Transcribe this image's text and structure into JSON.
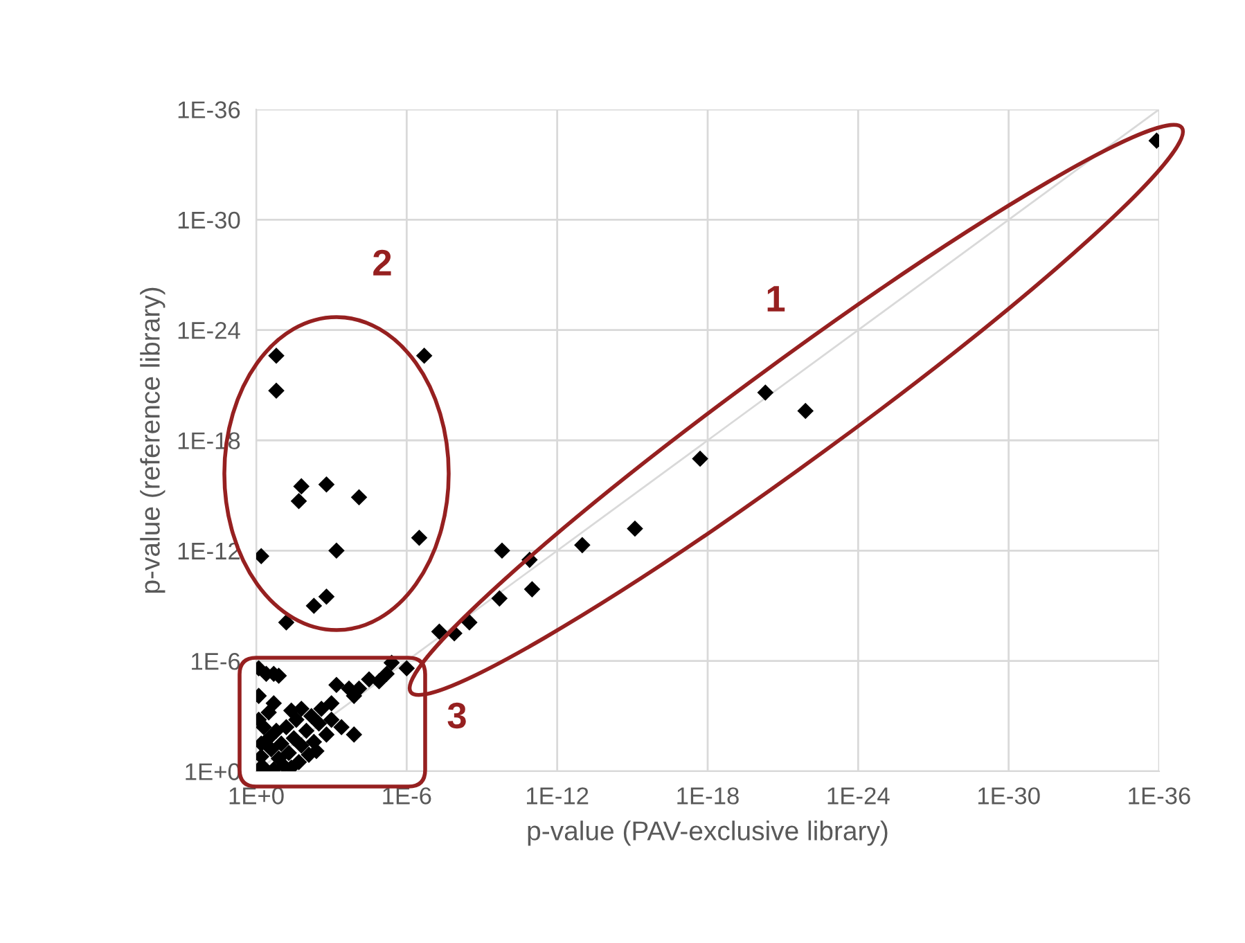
{
  "chart_data": {
    "type": "scatter",
    "xlabel": "p-value (PAV-exclusive library)",
    "ylabel": "p-value (reference library)",
    "log": "xy",
    "marker": "diamond",
    "grid": true,
    "xlim": [
      1,
      1e-36
    ],
    "ylim": [
      1,
      1e-36
    ],
    "xticks": [
      {
        "value": 1,
        "label": "1E+0"
      },
      {
        "value": 1e-06,
        "label": "1E-6"
      },
      {
        "value": 1e-12,
        "label": "1E-12"
      },
      {
        "value": 1e-18,
        "label": "1E-18"
      },
      {
        "value": 1e-24,
        "label": "1E-24"
      },
      {
        "value": 1e-30,
        "label": "1E-30"
      },
      {
        "value": 1e-36,
        "label": "1E-36"
      }
    ],
    "yticks": [
      {
        "value": 1,
        "label": "1E+0"
      },
      {
        "value": 1e-06,
        "label": "1E-6"
      },
      {
        "value": 1e-12,
        "label": "1E-12"
      },
      {
        "value": 1e-18,
        "label": "1E-18"
      },
      {
        "value": 1e-24,
        "label": "1E-24"
      },
      {
        "value": 1e-30,
        "label": "1E-30"
      },
      {
        "value": 1e-36,
        "label": "1E-36"
      }
    ],
    "annotations": [
      "1",
      "2",
      "3"
    ],
    "series": [
      {
        "type": "line",
        "marker": "none",
        "color": "#d9d9d9",
        "x": [
          1,
          1e-36
        ],
        "values": [
          1,
          1e-36
        ]
      },
      {
        "color": "#000000",
        "x": [
          0.158,
          0.158,
          2e-07,
          0.0158,
          0.02,
          0.00158,
          7.94e-05,
          0.631,
          0.000631,
          3.16e-07,
          0.00501,
          0.00158,
          0.0631
        ],
        "values": [
          2.51e-23,
          2e-21,
          2.51e-23,
          3.16e-16,
          2e-15,
          2.51e-16,
          1.26e-15,
          2e-12,
          1e-12,
          2e-13,
          1e-09,
          3.16e-10,
          7.94e-09
        ]
      },
      {
        "color": "#000000",
        "x": [
          5.01e-21,
          1.26e-22,
          2e-18,
          7.94e-16,
          1e-13,
          1.58e-10,
          1.26e-11,
          2e-10,
          1e-11,
          3.16e-09,
          5.01e-08,
          1.26e-08,
          1.26e-36
        ],
        "values": [
          2.51e-21,
          2.51e-20,
          1e-17,
          6.31e-14,
          5.01e-13,
          1e-12,
          3.16e-12,
          3.98e-10,
          1.26e-10,
          7.94e-09,
          2.51e-08,
          3.16e-08,
          5.01e-35
        ]
      },
      {
        "color": "#000000",
        "x": [
          0.794,
          0.398,
          0.2,
          0.126,
          0.794,
          0.2,
          0.794,
          0.316,
          0.0398,
          0.0158,
          3.98e-06,
          1e-06,
          6.31e-06,
          1.26e-05,
          3.16e-05,
          7.94e-05,
          0.000631,
          0.0002,
          0.000126,
          0.001,
          0.00251,
          0.000398,
          0.000126,
          0.00398,
          0.001,
          0.794,
          0.501,
          0.631,
          0.251,
          0.126,
          0.1,
          0.316,
          0.0501,
          0.0316,
          0.158,
          0.0631,
          0.0158,
          0.01,
          0.0251,
          0.00501,
          0.00316,
          0.00631,
          0.00158,
          0.501,
          0.631,
          0.0794,
          0.02,
          0.2,
          0.0398,
          0.00794
        ],
        "values": [
          2.51e-06,
          5.01e-06,
          5.01e-06,
          6.31e-06,
          7.94e-05,
          0.0002,
          0.00158,
          0.000631,
          0.000501,
          0.000398,
          1.26e-06,
          2.51e-06,
          5.01e-06,
          1.26e-05,
          1e-05,
          3.16e-05,
          2e-05,
          3.16e-05,
          7.94e-05,
          0.0002,
          0.000398,
          0.00398,
          0.01,
          0.0794,
          0.00158,
          0.794,
          0.631,
          0.158,
          0.0631,
          0.2,
          0.0316,
          0.0158,
          0.1,
          0.0158,
          0.00631,
          0.00398,
          0.0398,
          0.00631,
          0.00158,
          0.0251,
          0.00251,
          0.001,
          0.01,
          0.00398,
          0.0316,
          0.501,
          0.316,
          0.794,
          0.631,
          0.126
        ]
      }
    ]
  }
}
